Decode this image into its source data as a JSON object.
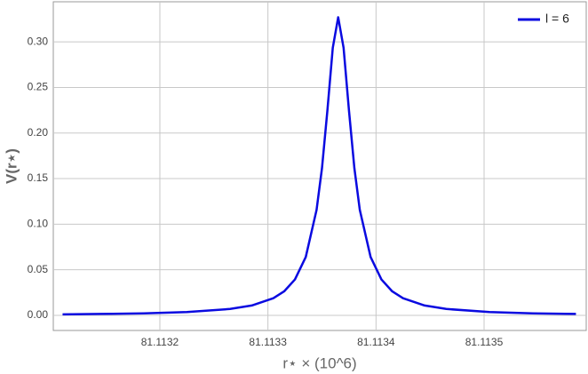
{
  "chart_data": {
    "type": "line",
    "xlabel": "r⋆ × (10^6)",
    "ylabel": "V(r⋆)",
    "x": [
      81.11311,
      81.113145,
      81.113185,
      81.113225,
      81.113265,
      81.113285,
      81.113305,
      81.113315,
      81.113325,
      81.113335,
      81.113345,
      81.11335,
      81.113355,
      81.11336,
      81.113365,
      81.11337,
      81.113375,
      81.11338,
      81.113385,
      81.113395,
      81.113405,
      81.113415,
      81.113425,
      81.113445,
      81.113465,
      81.113505,
      81.113545,
      81.113585
    ],
    "series": [
      {
        "name": "l = 6",
        "color": "#0a0ae0",
        "values": [
          0.0011,
          0.0015,
          0.0022,
          0.0036,
          0.007,
          0.0108,
          0.0188,
          0.0263,
          0.0394,
          0.064,
          0.1157,
          0.1613,
          0.2245,
          0.2935,
          0.327,
          0.2935,
          0.2245,
          0.1613,
          0.1157,
          0.064,
          0.0394,
          0.0263,
          0.0188,
          0.0108,
          0.007,
          0.0036,
          0.0022,
          0.0015
        ]
      }
    ],
    "xlim": [
      81.1131014,
      81.1135945
    ],
    "ylim": [
      -0.0166,
      0.344
    ],
    "xticks": [
      81.1132,
      81.1133,
      81.1134,
      81.1135
    ],
    "yticks": [
      {
        "value": 0,
        "label": "0.00"
      },
      {
        "value": 0.05,
        "label": "0.05"
      },
      {
        "value": 0.1,
        "label": "0.10"
      },
      {
        "value": 0.15,
        "label": "0.15"
      },
      {
        "value": 0.2,
        "label": "0.20"
      },
      {
        "value": 0.25,
        "label": "0.25"
      },
      {
        "value": 0.3,
        "label": "0.30"
      }
    ],
    "grid": true,
    "legend": "top-right"
  }
}
